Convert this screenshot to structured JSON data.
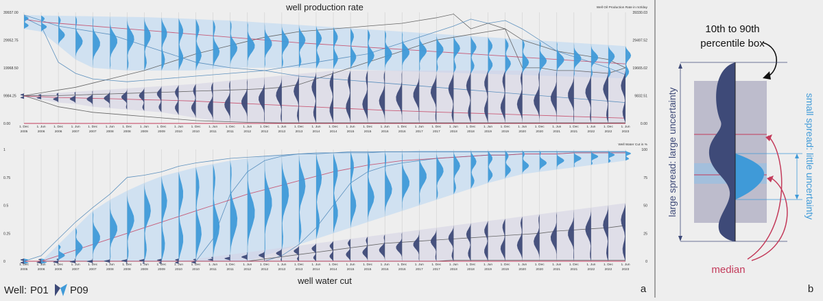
{
  "panel_labels": {
    "a": "a",
    "b": "b"
  },
  "legend": {
    "prefix": "Well:",
    "well_1": "P01",
    "well_2": "P09"
  },
  "colors": {
    "p01": "#3e4a78",
    "p09": "#3f9ad8",
    "median": "#c33a5a",
    "band_p09": "#c5dcf1",
    "band_p01": "#d4d2e4",
    "spaghetti": "#555555",
    "divider": "#bbbbbb",
    "background": "#eeeeee"
  },
  "chart_data": [
    {
      "type": "line",
      "title": "well production rate",
      "y_right_label": "Well Oil Production Rate in m3/day",
      "x": [
        "1. Dec 2005",
        "1. Jun 2006",
        "1. Dec 2006",
        "1. Jun 2007",
        "1. Dec 2007",
        "1. Jun 2008",
        "1. Dec 2008",
        "1. Jun 2009",
        "1. Dec 2009",
        "1. Jun 2010",
        "1. Dec 2010",
        "1. Jun 2011",
        "1. Dec 2011",
        "1. Jun 2012",
        "1. Dec 2012",
        "1. Jun 2013",
        "1. Dec 2013",
        "1. Jun 2014",
        "1. Dec 2014",
        "1. Jun 2015",
        "1. Dec 2015",
        "1. Jun 2016",
        "1. Dec 2016",
        "1. Jun 2017",
        "1. Dec 2017",
        "1. Jun 2018",
        "1. Dec 2018",
        "1. Jun 2019",
        "1. Dec 2019",
        "1. Jun 2020",
        "1. Dec 2020",
        "1. Jun 2021",
        "1. Dec 2021",
        "1. Jun 2022",
        "1. Dec 2022",
        "1. Jun 2023"
      ],
      "ylim_left": [
        0,
        39937
      ],
      "ylim_right": [
        0,
        39330.03
      ],
      "yticks_left": [
        "0.00",
        "9984.25",
        "19968.50",
        "29952.75",
        "39937.00"
      ],
      "yticks_right": [
        "0.00",
        "9832.51",
        "19665.02",
        "29497.52",
        "39330.03"
      ],
      "series": [
        {
          "name": "P09",
          "role": "median",
          "values": [
            37500,
            36500,
            36000,
            35500,
            35000,
            34500,
            34000,
            33500,
            33000,
            32500,
            32000,
            31500,
            31000,
            30500,
            30000,
            29500,
            29000,
            28600,
            28200,
            27800,
            27400,
            27000,
            26600,
            26200,
            25800,
            25400,
            25000,
            24600,
            24200,
            23800,
            23400,
            23000,
            22600,
            22200,
            21800,
            21400
          ]
        },
        {
          "name": "P09",
          "role": "p10",
          "values": [
            34000,
            33000,
            28000,
            23000,
            20000,
            19500,
            19000,
            19000,
            19000,
            19000,
            19000,
            19500,
            20000,
            20000,
            20000,
            20000,
            20000,
            19800,
            19600,
            19400,
            19200,
            19000,
            18800,
            18600,
            18400,
            18200,
            18000,
            17800,
            17600,
            17400,
            17200,
            17000,
            16800,
            16600,
            16400,
            16200
          ]
        },
        {
          "name": "P09",
          "role": "p90",
          "values": [
            39000,
            38800,
            38700,
            38600,
            38500,
            38400,
            38300,
            38200,
            38000,
            37800,
            37500,
            37200,
            37000,
            36600,
            36200,
            35800,
            35400,
            35000,
            34600,
            34200,
            33800,
            33400,
            33000,
            32600,
            32200,
            31800,
            31400,
            31000,
            30600,
            30200,
            29800,
            29400,
            29000,
            28600,
            28200,
            27800
          ]
        },
        {
          "name": "P01",
          "role": "median",
          "values": [
            9800,
            9600,
            9300,
            9200,
            9000,
            8900,
            8700,
            8500,
            8400,
            8200,
            8000,
            7700,
            7400,
            7100,
            6800,
            6500,
            6200,
            5900,
            5600,
            5300,
            5000,
            4700,
            4500,
            4300,
            4100,
            3900,
            3700,
            3500,
            3300,
            3100,
            2900,
            2700,
            2500,
            2300,
            2100,
            1900
          ]
        },
        {
          "name": "P01",
          "role": "p10",
          "values": [
            9400,
            8600,
            7500,
            7000,
            6000,
            5500,
            5000,
            4500,
            4000,
            3000,
            2000,
            1000,
            500,
            200,
            200,
            200,
            200,
            200,
            200,
            200,
            200,
            200,
            200,
            200,
            200,
            200,
            200,
            200,
            200,
            200,
            200,
            200,
            200,
            200,
            200,
            200
          ]
        },
        {
          "name": "P01",
          "role": "p90",
          "values": [
            10200,
            10600,
            11000,
            11400,
            11800,
            12200,
            12600,
            13000,
            13400,
            13800,
            14200,
            14800,
            15400,
            16000,
            16600,
            17200,
            17800,
            18400,
            19000,
            19000,
            19000,
            19000,
            19000,
            19000,
            19000,
            19000,
            19000,
            19000,
            19000,
            19000,
            19000,
            19000,
            19000,
            19000,
            19000,
            19000
          ]
        },
        {
          "name": "P01",
          "role": "member",
          "values": [
            9984,
            11000,
            12000,
            13000,
            14500,
            16000,
            17500,
            19000,
            21000,
            23000,
            25000,
            26500,
            28000,
            29500,
            31000,
            32000,
            33000,
            33500,
            34000,
            34500,
            35000,
            35500,
            36000,
            37000,
            38000,
            39330,
            34000,
            36000,
            34000,
            20000,
            20000,
            19000,
            19000,
            18500,
            18000,
            20000
          ]
        },
        {
          "name": "P01",
          "role": "member",
          "values": [
            9984,
            9984,
            10000,
            10200,
            10400,
            10600,
            10800,
            11000,
            11200,
            11400,
            11600,
            11800,
            12000,
            12200,
            12500,
            13000,
            14000,
            16000,
            18000,
            20000,
            22000,
            24000,
            26000,
            28000,
            30000,
            31000,
            32000,
            33000,
            34000,
            30000,
            28000,
            26000,
            25000,
            24000,
            23000,
            20000
          ]
        },
        {
          "name": "P09",
          "role": "member",
          "values": [
            38000,
            35000,
            22000,
            18000,
            16000,
            15500,
            15000,
            15500,
            16000,
            16500,
            17000,
            17500,
            18000,
            18500,
            19000,
            20000,
            21000,
            22000,
            23000,
            24000,
            25000,
            27000,
            29000,
            31000,
            33000,
            35000,
            37500,
            36000,
            37000,
            34000,
            30000,
            26000,
            24000,
            22000,
            20000,
            17500
          ]
        },
        {
          "name": "P09",
          "role": "member",
          "values": [
            39000,
            37000,
            35000,
            34000,
            33000,
            32000,
            30000,
            28000,
            26000,
            24000,
            22000,
            21000,
            20000,
            19500,
            19000,
            18000,
            17000,
            16500,
            16000,
            15500,
            15000,
            14500,
            14000,
            13500,
            13000,
            12500,
            12000,
            11500,
            11000,
            10500,
            10000,
            9500,
            9000,
            8500,
            8000,
            7500
          ]
        },
        {
          "name": "P01",
          "role": "member",
          "values": [
            9984,
            8000,
            6000,
            5000,
            4000,
            3500,
            3000,
            2500,
            2000,
            1500,
            1000,
            800,
            600,
            400,
            300,
            200,
            200,
            200,
            200,
            200,
            200,
            200,
            200,
            200,
            200,
            200,
            200,
            200,
            200,
            200,
            200,
            200,
            200,
            200,
            200,
            200
          ]
        }
      ]
    },
    {
      "type": "line",
      "title": "well water cut",
      "y_right_label": "Well Water Cut in %",
      "x": [
        "1. Dec 2005",
        "1. Jun 2006",
        "1. Dec 2006",
        "1. Jun 2007",
        "1. Dec 2007",
        "1. Jun 2008",
        "1. Dec 2008",
        "1. Jun 2009",
        "1. Dec 2009",
        "1. Jun 2010",
        "1. Dec 2010",
        "1. Jun 2011",
        "1. Dec 2011",
        "1. Jun 2012",
        "1. Dec 2012",
        "1. Jun 2013",
        "1. Dec 2013",
        "1. Jun 2014",
        "1. Dec 2014",
        "1. Jun 2015",
        "1. Dec 2015",
        "1. Jun 2016",
        "1. Dec 2016",
        "1. Jun 2017",
        "1. Dec 2017",
        "1. Jun 2018",
        "1. Dec 2018",
        "1. Jun 2019",
        "1. Dec 2019",
        "1. Jun 2020",
        "1. Dec 2020",
        "1. Jun 2021",
        "1. Dec 2021",
        "1. Jun 2022",
        "1. Dec 2022",
        "1. Jun 2023"
      ],
      "ylim_left": [
        0,
        1
      ],
      "ylim_right": [
        0,
        100
      ],
      "yticks_left": [
        "0",
        "0.25",
        "0.5",
        "0.75",
        "1"
      ],
      "yticks_right": [
        "0",
        "25",
        "50",
        "75",
        "100"
      ],
      "series": [
        {
          "name": "P09",
          "role": "median",
          "values": [
            0.0,
            0.0,
            0.05,
            0.1,
            0.15,
            0.2,
            0.25,
            0.3,
            0.35,
            0.4,
            0.45,
            0.5,
            0.55,
            0.6,
            0.64,
            0.68,
            0.72,
            0.76,
            0.8,
            0.83,
            0.86,
            0.88,
            0.9,
            0.91,
            0.92,
            0.93,
            0.94,
            0.95,
            0.95,
            0.96,
            0.96,
            0.96,
            0.97,
            0.97,
            0.97,
            0.97
          ]
        },
        {
          "name": "P09",
          "role": "p10",
          "values": [
            0.0,
            0.0,
            0.0,
            0.0,
            0.0,
            0.0,
            0.0,
            0.0,
            0.0,
            0.0,
            0.0,
            0.0,
            0.0,
            0.0,
            0.05,
            0.1,
            0.15,
            0.2,
            0.25,
            0.3,
            0.35,
            0.4,
            0.45,
            0.5,
            0.55,
            0.6,
            0.65,
            0.7,
            0.74,
            0.78,
            0.8,
            0.82,
            0.84,
            0.86,
            0.88,
            0.9
          ]
        },
        {
          "name": "P09",
          "role": "p90",
          "values": [
            0.0,
            0.0,
            0.15,
            0.3,
            0.45,
            0.55,
            0.63,
            0.7,
            0.76,
            0.8,
            0.84,
            0.87,
            0.9,
            0.92,
            0.94,
            0.95,
            0.96,
            0.97,
            0.97,
            0.98,
            0.98,
            0.98,
            0.98,
            0.99,
            0.99,
            0.99,
            0.99,
            0.99,
            0.99,
            0.99,
            0.99,
            0.99,
            0.99,
            0.99,
            0.99,
            0.99
          ]
        },
        {
          "name": "P01",
          "role": "median",
          "values": [
            0,
            0,
            0,
            0,
            0,
            0,
            0,
            0,
            0,
            0,
            0,
            0,
            0,
            0,
            0,
            0,
            0,
            0,
            0,
            0,
            0,
            0,
            0,
            0,
            0,
            0,
            0,
            0,
            0,
            0,
            0,
            0,
            0,
            0,
            0,
            0
          ]
        },
        {
          "name": "P01",
          "role": "p10",
          "values": [
            0,
            0,
            0,
            0,
            0,
            0,
            0,
            0,
            0,
            0,
            0,
            0,
            0,
            0,
            0,
            0,
            0,
            0,
            0,
            0,
            0,
            0,
            0,
            0,
            0,
            0,
            0,
            0,
            0,
            0,
            0,
            0,
            0,
            0,
            0,
            0
          ]
        },
        {
          "name": "P01",
          "role": "p90",
          "values": [
            0,
            0,
            0,
            0,
            0,
            0,
            0,
            0,
            0,
            0,
            0.02,
            0.04,
            0.06,
            0.08,
            0.1,
            0.12,
            0.14,
            0.16,
            0.18,
            0.2,
            0.22,
            0.24,
            0.26,
            0.28,
            0.3,
            0.32,
            0.34,
            0.36,
            0.38,
            0.4,
            0.42,
            0.44,
            0.46,
            0.48,
            0.5,
            0.52
          ]
        },
        {
          "name": "P09",
          "role": "member",
          "values": [
            0,
            0.05,
            0.2,
            0.35,
            0.48,
            0.6,
            0.75,
            0.77,
            0.8,
            0.85,
            0.88,
            0.9,
            0.92,
            0.93,
            0.94,
            0.95,
            0.96,
            0.96,
            0.97,
            0.97,
            0.97,
            0.98,
            0.98,
            0.98,
            0.98,
            0.98,
            0.98,
            0.98,
            0.98,
            0.98,
            0.98,
            0.98,
            0.98,
            0.98,
            0.98,
            0.98
          ]
        },
        {
          "name": "P09",
          "role": "member",
          "values": [
            0,
            0,
            0,
            0,
            0,
            0,
            0,
            0,
            0,
            0,
            0,
            0.2,
            0.6,
            0.8,
            0.9,
            0.94,
            0.96,
            0.97,
            0.97,
            0.98,
            0.98,
            0.98,
            0.98,
            0.98,
            0.98,
            0.98,
            0.98,
            0.98,
            0.98,
            0.98,
            0.98,
            0.98,
            0.98,
            0.98,
            0.98,
            0.98
          ]
        },
        {
          "name": "P09",
          "role": "member",
          "values": [
            0,
            0,
            0,
            0,
            0,
            0,
            0,
            0,
            0,
            0,
            0,
            0,
            0,
            0,
            0,
            0.05,
            0.15,
            0.3,
            0.5,
            0.7,
            0.8,
            0.85,
            0.88,
            0.9,
            0.92,
            0.93,
            0.94,
            0.95,
            0.95,
            0.96,
            0.96,
            0.96,
            0.97,
            0.97,
            0.97,
            0.97
          ]
        },
        {
          "name": "P01",
          "role": "member",
          "values": [
            0,
            0,
            0,
            0,
            0,
            0,
            0,
            0,
            0,
            0,
            0,
            0,
            0,
            0,
            0.02,
            0.04,
            0.06,
            0.08,
            0.1,
            0.12,
            0.14,
            0.16,
            0.17,
            0.18,
            0.19,
            0.2,
            0.21,
            0.22,
            0.23,
            0.24,
            0.25,
            0.27,
            0.28,
            0.29,
            0.3,
            0.32
          ]
        },
        {
          "name": "P01",
          "role": "member",
          "values": [
            0,
            0,
            0,
            0,
            0,
            0,
            0,
            0,
            0,
            0,
            0,
            0,
            0,
            0,
            0,
            0,
            0,
            0,
            0,
            0,
            0,
            0,
            0,
            0,
            0,
            0.01,
            0.01,
            0.01,
            0.01,
            0.01,
            0.01,
            0.01,
            0.01,
            0.01,
            0.01,
            0.01
          ]
        }
      ]
    }
  ],
  "schematic": {
    "percentile_label_line1": "10th to 90th",
    "percentile_label_line2": "percentile box",
    "large_spread_label": "large spread: large uncertainty",
    "small_spread_label": "small spread: little uncertainty",
    "median_label": "median"
  }
}
